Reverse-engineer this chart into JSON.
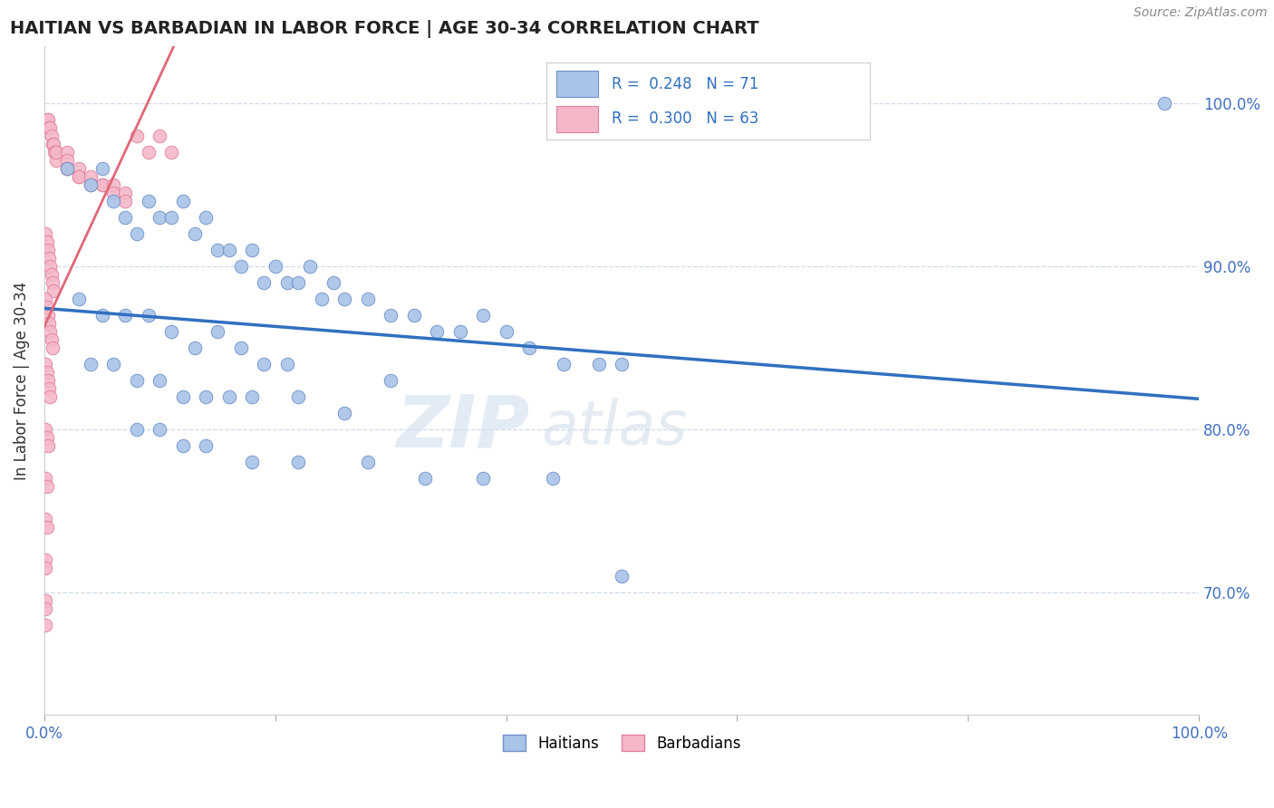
{
  "title": "HAITIAN VS BARBADIAN IN LABOR FORCE | AGE 30-34 CORRELATION CHART",
  "source": "Source: ZipAtlas.com",
  "ylabel": "In Labor Force | Age 30-34",
  "xlim": [
    0.0,
    1.0
  ],
  "ylim": [
    0.625,
    1.035
  ],
  "ytick_vals": [
    0.7,
    0.8,
    0.9,
    1.0
  ],
  "ytick_labels": [
    "70.0%",
    "80.0%",
    "90.0%",
    "100.0%"
  ],
  "legend_r_haiti": "0.248",
  "legend_n_haiti": "71",
  "legend_r_barbadian": "0.300",
  "legend_n_barbadian": "63",
  "haiti_color": "#a8c4e8",
  "barbadian_color": "#f5b8c8",
  "haiti_edge": "#7090c8",
  "barbadian_edge": "#e080a0",
  "trendline_haiti_color": "#3070c0",
  "trendline_barbadian_color": "#e06878",
  "watermark": "ZIPatlas",
  "watermark_color": "#d0dff0",
  "grid_color": "#c8d8e8",
  "haiti_x": [
    0.02,
    0.04,
    0.05,
    0.06,
    0.07,
    0.08,
    0.09,
    0.1,
    0.11,
    0.12,
    0.13,
    0.14,
    0.15,
    0.16,
    0.17,
    0.18,
    0.19,
    0.2,
    0.21,
    0.22,
    0.23,
    0.24,
    0.25,
    0.26,
    0.28,
    0.3,
    0.32,
    0.34,
    0.36,
    0.38,
    0.4,
    0.42,
    0.45,
    0.48,
    0.5,
    0.3,
    0.97,
    0.03,
    0.05,
    0.07,
    0.09,
    0.11,
    0.13,
    0.15,
    0.17,
    0.19,
    0.21,
    0.04,
    0.06,
    0.08,
    0.1,
    0.12,
    0.14,
    0.16,
    0.18,
    0.22,
    0.26,
    0.08,
    0.1,
    0.12,
    0.14,
    0.18,
    0.22,
    0.28,
    0.33,
    0.38,
    0.44,
    0.5
  ],
  "haiti_y": [
    0.96,
    0.95,
    0.96,
    0.94,
    0.93,
    0.92,
    0.94,
    0.93,
    0.93,
    0.94,
    0.92,
    0.93,
    0.91,
    0.91,
    0.9,
    0.91,
    0.89,
    0.9,
    0.89,
    0.89,
    0.9,
    0.88,
    0.89,
    0.88,
    0.88,
    0.87,
    0.87,
    0.86,
    0.86,
    0.87,
    0.86,
    0.85,
    0.84,
    0.84,
    0.84,
    0.83,
    1.0,
    0.88,
    0.87,
    0.87,
    0.87,
    0.86,
    0.85,
    0.86,
    0.85,
    0.84,
    0.84,
    0.84,
    0.84,
    0.83,
    0.83,
    0.82,
    0.82,
    0.82,
    0.82,
    0.82,
    0.81,
    0.8,
    0.8,
    0.79,
    0.79,
    0.78,
    0.78,
    0.78,
    0.77,
    0.77,
    0.77,
    0.71
  ],
  "barb_x": [
    0.002,
    0.003,
    0.004,
    0.005,
    0.006,
    0.007,
    0.008,
    0.009,
    0.01,
    0.01,
    0.01,
    0.02,
    0.02,
    0.02,
    0.02,
    0.03,
    0.03,
    0.03,
    0.04,
    0.04,
    0.05,
    0.05,
    0.06,
    0.06,
    0.07,
    0.07,
    0.08,
    0.09,
    0.1,
    0.11,
    0.001,
    0.002,
    0.003,
    0.004,
    0.005,
    0.006,
    0.007,
    0.008,
    0.001,
    0.002,
    0.003,
    0.004,
    0.005,
    0.006,
    0.007,
    0.001,
    0.002,
    0.003,
    0.004,
    0.005,
    0.001,
    0.002,
    0.003,
    0.001,
    0.002,
    0.001,
    0.002,
    0.001,
    0.001,
    0.001,
    0.001,
    0.001
  ],
  "barb_y": [
    0.99,
    0.99,
    0.985,
    0.985,
    0.98,
    0.975,
    0.975,
    0.97,
    0.97,
    0.965,
    0.97,
    0.97,
    0.965,
    0.96,
    0.96,
    0.96,
    0.955,
    0.955,
    0.955,
    0.95,
    0.95,
    0.95,
    0.95,
    0.945,
    0.945,
    0.94,
    0.98,
    0.97,
    0.98,
    0.97,
    0.92,
    0.915,
    0.91,
    0.905,
    0.9,
    0.895,
    0.89,
    0.885,
    0.88,
    0.875,
    0.87,
    0.865,
    0.86,
    0.855,
    0.85,
    0.84,
    0.835,
    0.83,
    0.825,
    0.82,
    0.8,
    0.795,
    0.79,
    0.77,
    0.765,
    0.745,
    0.74,
    0.72,
    0.715,
    0.695,
    0.69,
    0.68
  ]
}
